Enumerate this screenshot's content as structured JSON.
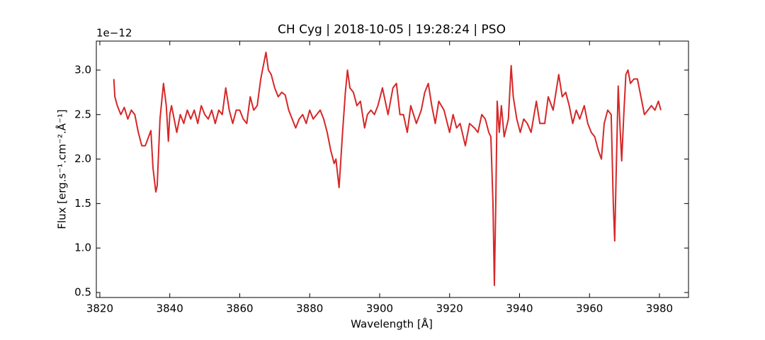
{
  "chart_data": {
    "type": "line",
    "title": "CH Cyg | 2018-10-05 | 19:28:24 | PSO",
    "x_label": "Wavelength [Å]",
    "y_label": "Flux [erg.s⁻¹.cm⁻².Å⁻¹]",
    "y_offset_label": "1e−12",
    "color": "#d62728",
    "x": [
      3824.0,
      3824.3,
      3825,
      3826,
      3827,
      3828,
      3829,
      3830,
      3831,
      3832,
      3833,
      3834.6,
      3835.2,
      3836.0,
      3836.4,
      3837.2,
      3838.2,
      3839.0,
      3839.6,
      3840,
      3840.5,
      3842,
      3843,
      3844,
      3845,
      3846,
      3847,
      3848,
      3849,
      3850,
      3851,
      3852,
      3853,
      3854,
      3855,
      3856,
      3857,
      3858,
      3859,
      3860,
      3861,
      3862,
      3863,
      3864,
      3865,
      3866,
      3867,
      3867.5,
      3868.2,
      3869,
      3870,
      3871,
      3872,
      3873,
      3874,
      3875,
      3876,
      3877,
      3878,
      3879,
      3880,
      3881,
      3882,
      3883,
      3884,
      3885,
      3886,
      3887,
      3887.5,
      3888.4,
      3889.4,
      3890.2,
      3890.8,
      3891.5,
      3892.5,
      3893.5,
      3894.5,
      3895.7,
      3896.5,
      3897.5,
      3898.5,
      3899.5,
      3900.8,
      3902.4,
      3903.8,
      3904.8,
      3905.8,
      3906.8,
      3907.9,
      3908.9,
      3910.5,
      3911.9,
      3912.9,
      3913.9,
      3914.9,
      3915.9,
      3916.9,
      3918.4,
      3920,
      3921,
      3922,
      3923,
      3924.5,
      3925.7,
      3927.1,
      3928.1,
      3929.2,
      3930.2,
      3931.2,
      3931.8,
      3932.4,
      3932.8,
      3933.2,
      3933.6,
      3934.2,
      3934.8,
      3935.6,
      3936.8,
      3937.6,
      3938.2,
      3939.2,
      3940.2,
      3941.2,
      3942.2,
      3943.3,
      3944.8,
      3945.8,
      3947.2,
      3948.2,
      3949.6,
      3951.2,
      3952.2,
      3953.2,
      3954.2,
      3955.2,
      3956.2,
      3957.2,
      3958.5,
      3959.5,
      3960.5,
      3961.5,
      3962.5,
      3963.4,
      3964.2,
      3965.2,
      3966.2,
      3966.8,
      3967.2,
      3967.6,
      3968.2,
      3968.8,
      3969.2,
      3969.8,
      3970.4,
      3971,
      3971.7,
      3972.7,
      3973.7,
      3974.7,
      3975.7,
      3976.7,
      3977.7,
      3978.7,
      3979.7,
      3980.4
    ],
    "values": [
      2.9,
      2.7,
      2.6,
      2.5,
      2.58,
      2.45,
      2.55,
      2.5,
      2.3,
      2.15,
      2.15,
      2.32,
      1.9,
      1.63,
      1.7,
      2.45,
      2.85,
      2.6,
      2.2,
      2.5,
      2.6,
      2.3,
      2.5,
      2.4,
      2.55,
      2.45,
      2.55,
      2.4,
      2.6,
      2.5,
      2.45,
      2.55,
      2.4,
      2.55,
      2.5,
      2.8,
      2.55,
      2.4,
      2.55,
      2.55,
      2.45,
      2.4,
      2.7,
      2.55,
      2.6,
      2.9,
      3.1,
      3.2,
      3.0,
      2.95,
      2.8,
      2.7,
      2.75,
      2.72,
      2.55,
      2.45,
      2.35,
      2.45,
      2.5,
      2.4,
      2.55,
      2.45,
      2.5,
      2.55,
      2.45,
      2.3,
      2.1,
      1.95,
      2.0,
      1.68,
      2.3,
      2.75,
      3.0,
      2.8,
      2.75,
      2.6,
      2.65,
      2.35,
      2.5,
      2.55,
      2.5,
      2.6,
      2.8,
      2.5,
      2.8,
      2.85,
      2.5,
      2.5,
      2.3,
      2.6,
      2.4,
      2.55,
      2.75,
      2.85,
      2.6,
      2.4,
      2.65,
      2.55,
      2.3,
      2.5,
      2.35,
      2.4,
      2.15,
      2.4,
      2.35,
      2.3,
      2.5,
      2.45,
      2.3,
      2.25,
      1.5,
      0.58,
      1.5,
      2.65,
      2.3,
      2.6,
      2.25,
      2.45,
      3.05,
      2.7,
      2.45,
      2.3,
      2.45,
      2.4,
      2.3,
      2.65,
      2.4,
      2.4,
      2.7,
      2.55,
      2.95,
      2.7,
      2.75,
      2.6,
      2.4,
      2.55,
      2.45,
      2.6,
      2.4,
      2.3,
      2.25,
      2.1,
      2.0,
      2.4,
      2.55,
      2.5,
      1.5,
      1.08,
      1.8,
      2.82,
      2.3,
      1.98,
      2.5,
      2.95,
      3.0,
      2.85,
      2.9,
      2.9,
      2.7,
      2.5,
      2.55,
      2.6,
      2.55,
      2.65,
      2.55
    ],
    "xlim": [
      3819,
      3988.3
    ],
    "ylim": [
      0.444,
      3.326
    ],
    "xticks": [
      3820,
      3840,
      3860,
      3880,
      3900,
      3920,
      3940,
      3960,
      3980
    ],
    "yticks": [
      0.5,
      {
        "value": 1.0,
        "label": "1.0"
      },
      1.5,
      {
        "value": 2.0,
        "label": "2.0"
      },
      2.5,
      {
        "value": 3.0,
        "label": "3.0"
      }
    ]
  }
}
